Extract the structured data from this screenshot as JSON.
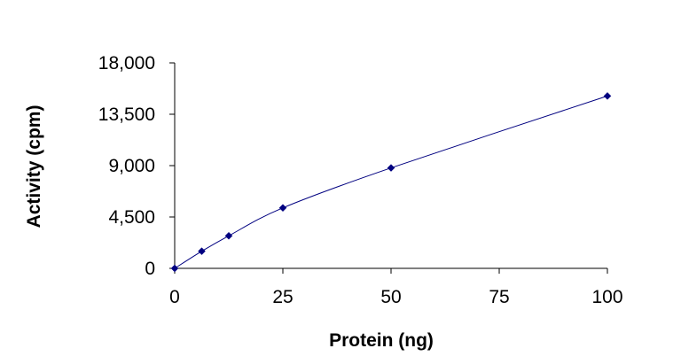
{
  "chart_data": {
    "type": "scatter",
    "title": "",
    "xlabel": "Protein (ng)",
    "ylabel": "Activity (cpm)",
    "xlim": [
      0,
      100
    ],
    "ylim": [
      0,
      18000
    ],
    "x_ticks": [
      0,
      25,
      50,
      75,
      100
    ],
    "x_tick_labels": [
      "0",
      "25",
      "50",
      "75",
      "100"
    ],
    "y_ticks": [
      0,
      4500,
      9000,
      13500,
      18000
    ],
    "y_tick_labels": [
      "0",
      "4,500",
      "9,000",
      "13,500",
      "18,000"
    ],
    "grid": false,
    "legend": "none",
    "series": [
      {
        "x": [
          0,
          6.25,
          12.5,
          25,
          50,
          100
        ],
        "y": [
          0,
          1500,
          2850,
          5300,
          8800,
          15100
        ],
        "marker": "diamond",
        "color": "#000080",
        "line": "smooth"
      }
    ]
  }
}
